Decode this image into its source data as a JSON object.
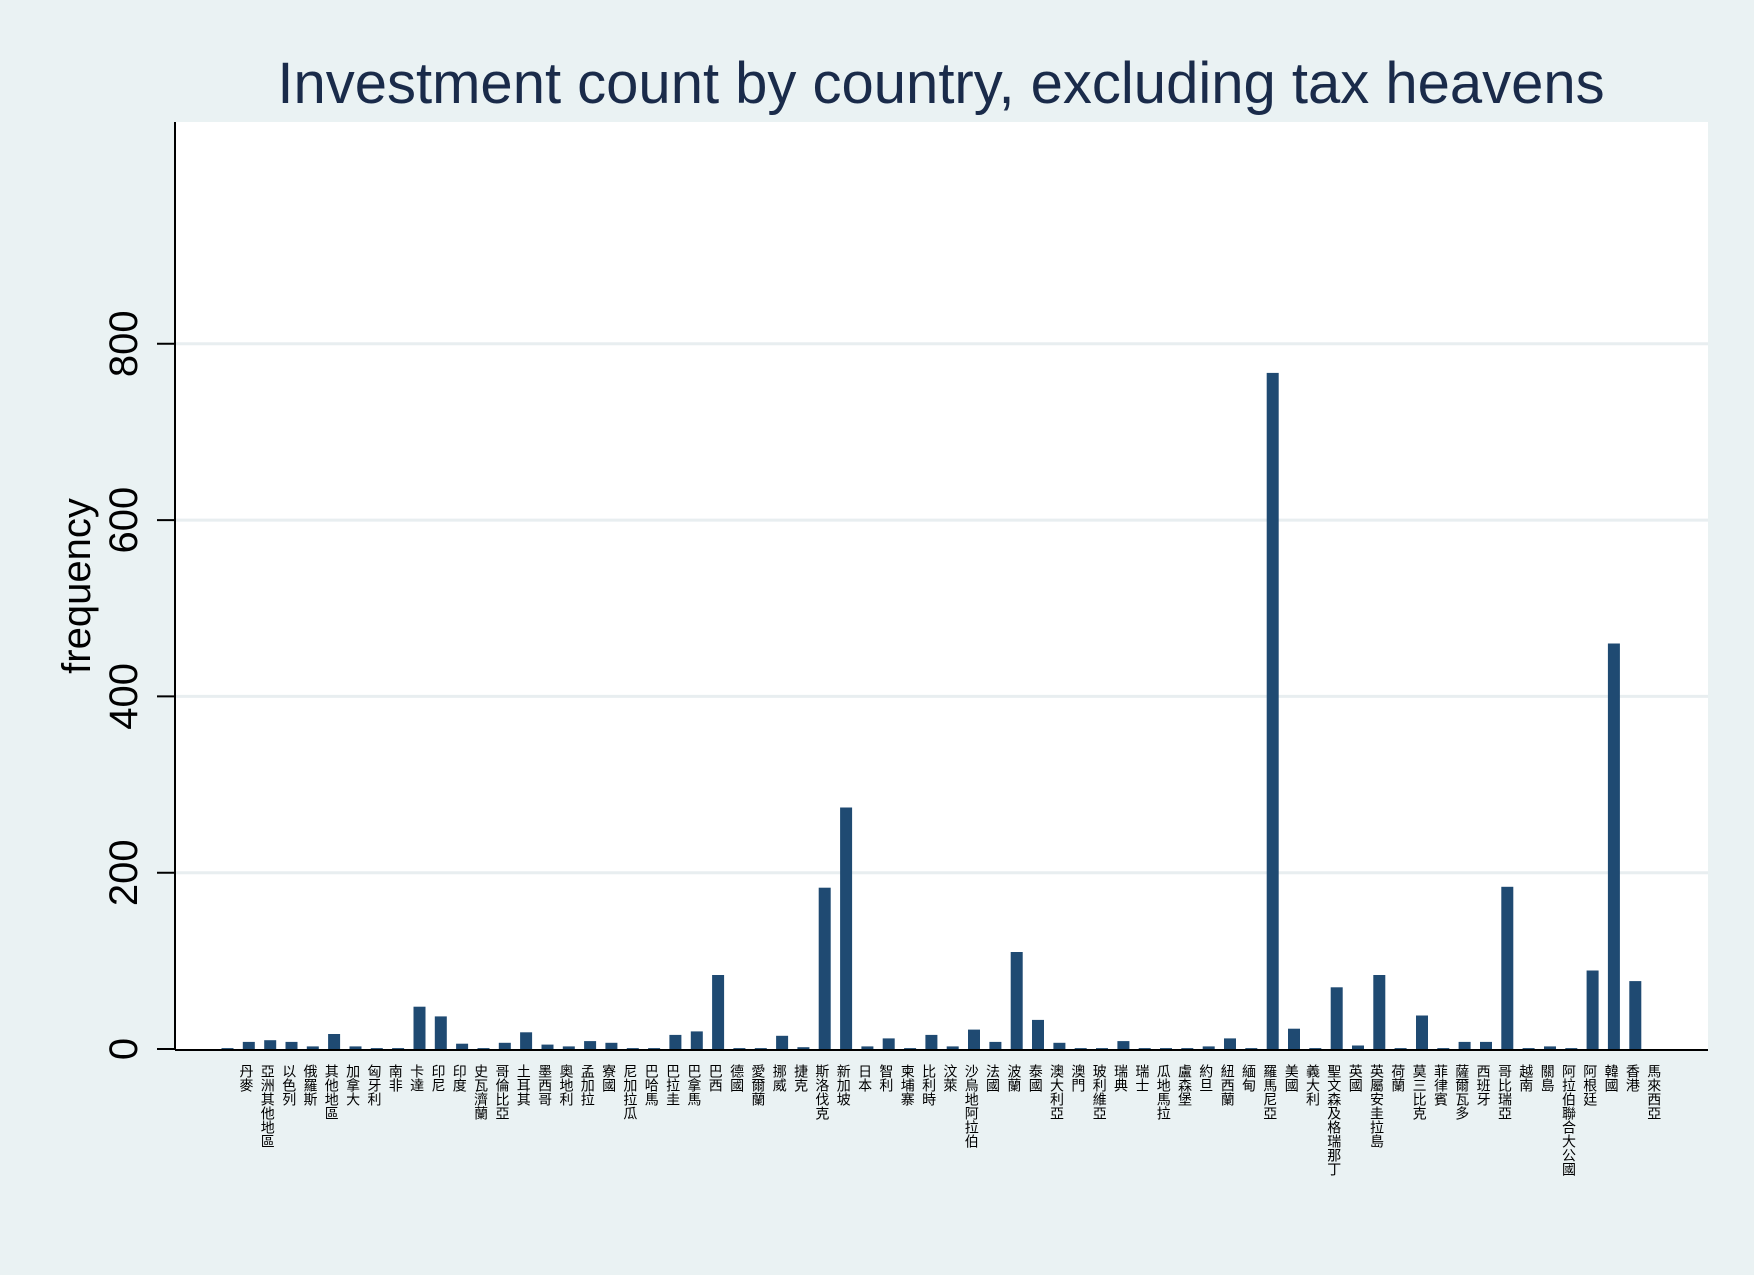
{
  "chart_data": {
    "type": "bar",
    "title": "Investment count by country, excluding tax heavens",
    "xlabel": "",
    "ylabel": "frequency",
    "ylim": [
      0,
      840
    ],
    "yticks": [
      0,
      200,
      400,
      600,
      800
    ],
    "grid": true,
    "bar_color": "#1f4a72",
    "plot_background": "#ffffff",
    "page_background": "#eaf2f3",
    "categories": [
      "丹麥",
      "亞洲其他地區",
      "以色列",
      "俄羅斯",
      "其他地區",
      "加拿大",
      "匈牙利",
      "南非",
      "卡達",
      "印尼",
      "印度",
      "史瓦濟蘭",
      "哥倫比亞",
      "土耳其",
      "墨西哥",
      "奧地利",
      "孟加拉",
      "寮國",
      "尼加拉瓜",
      "巴哈馬",
      "巴拉圭",
      "巴拿馬",
      "巴西",
      "德國",
      "愛爾蘭",
      "挪威",
      "捷克",
      "斯洛伐克",
      "新加坡",
      "日本",
      "智利",
      "柬埔寨",
      "比利時",
      "汶萊",
      "沙烏地阿拉伯",
      "法國",
      "波蘭",
      "泰國",
      "澳大利亞",
      "澳門",
      "玻利維亞",
      "瑞典",
      "瑞士",
      "瓜地馬拉",
      "盧森堡",
      "約旦",
      "紐西蘭",
      "緬甸",
      "羅馬尼亞",
      "美國",
      "義大利",
      "聖文森及格瑞那丁",
      "英國",
      "英屬安圭拉島",
      "荷蘭",
      "莫三比克",
      "菲律賓",
      "薩爾瓦多",
      "西班牙",
      "哥比瑞亞",
      "越南",
      "關島",
      "阿拉伯聯合大公國",
      "阿根廷",
      "韓國",
      "香港",
      "馬來西亞"
    ],
    "values": [
      1,
      8,
      10,
      8,
      3,
      17,
      3,
      1,
      1,
      48,
      37,
      6,
      1,
      7,
      19,
      5,
      3,
      9,
      7,
      1,
      1,
      16,
      20,
      84,
      1,
      1,
      15,
      2,
      183,
      274,
      3,
      12,
      1,
      16,
      3,
      22,
      8,
      110,
      33,
      7,
      1,
      1,
      9,
      1,
      1,
      1,
      3,
      12,
      1,
      767,
      23,
      1,
      70,
      4,
      84,
      1,
      38,
      1,
      8,
      8,
      184,
      1,
      3,
      1,
      89,
      460,
      77
    ]
  }
}
